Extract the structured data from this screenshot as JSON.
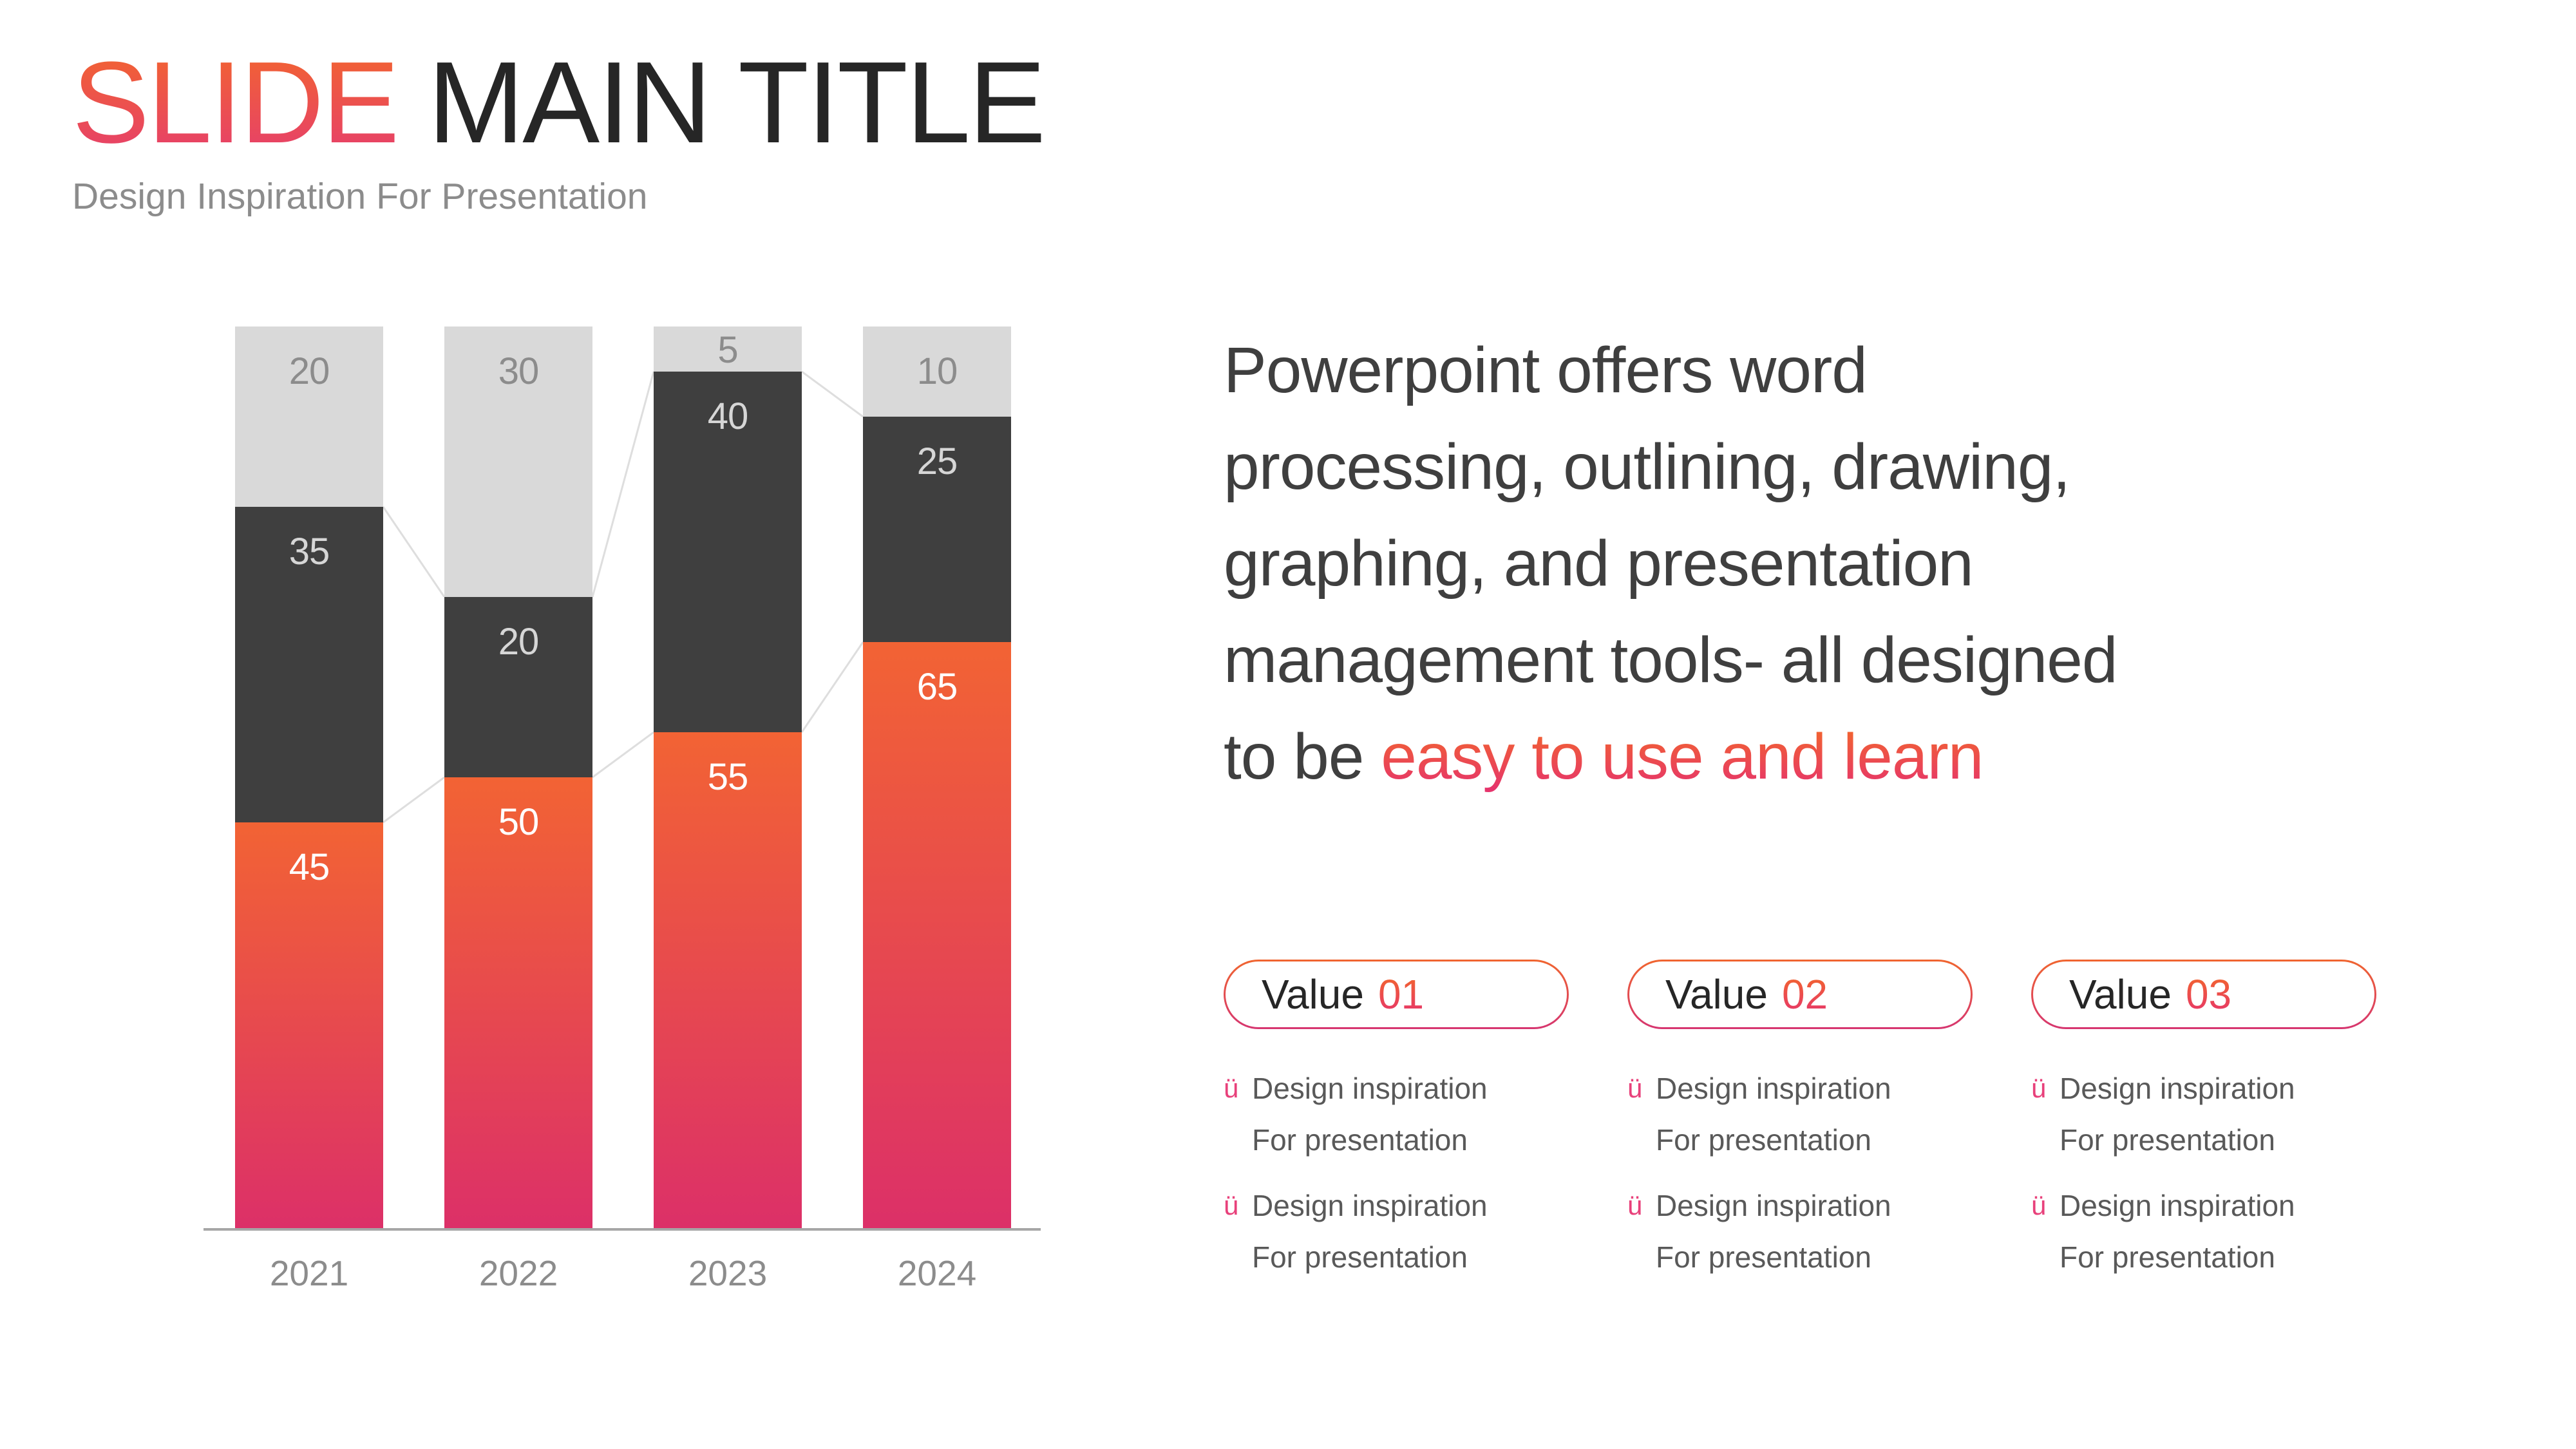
{
  "slide": {
    "title_accent": "SLIDE",
    "title_rest": " MAIN TITLE",
    "subtitle": "Design Inspiration For Presentation"
  },
  "paragraph": {
    "plain": "Powerpoint offers word\nprocessing, outlining, drawing,\ngraphing, and presentation\nmanagement tools- all designed\nto be ",
    "accent": "easy to use and learn"
  },
  "bullet_glyph": "ü",
  "value_cards": [
    {
      "badge_label": "Value",
      "badge_number": "01",
      "items": [
        {
          "line1": "Design inspiration",
          "line2": "For presentation"
        },
        {
          "line1": "Design inspiration",
          "line2": "For presentation"
        }
      ]
    },
    {
      "badge_label": "Value",
      "badge_number": "02",
      "items": [
        {
          "line1": "Design inspiration",
          "line2": "For presentation"
        },
        {
          "line1": "Design inspiration",
          "line2": "For presentation"
        }
      ]
    },
    {
      "badge_label": "Value",
      "badge_number": "03",
      "items": [
        {
          "line1": "Design inspiration",
          "line2": "For presentation"
        },
        {
          "line1": "Design inspiration",
          "line2": "For presentation"
        }
      ]
    }
  ],
  "colors": {
    "accent_gradient_top": "#F2652E",
    "accent_gradient_bottom": "#E6346C",
    "title_dark": "#262626",
    "subtitle_gray": "#8C8C8C",
    "paragraph_dark": "#3F3F3F",
    "list_text_gray": "#595959",
    "bullet_pink": "#E8417B",
    "axis_line": "#A6A6A6",
    "connector_line": "#DEDEDE"
  },
  "chart_data": {
    "type": "bar",
    "stacked": true,
    "categories": [
      "2021",
      "2022",
      "2023",
      "2024"
    ],
    "series": [
      {
        "name": "bottom",
        "values": [
          45,
          50,
          55,
          65
        ],
        "fill": {
          "type": "gradient",
          "top": "#F26334",
          "bottom": "#DC3068"
        },
        "label_color": "#FFFFFF"
      },
      {
        "name": "middle",
        "values": [
          35,
          20,
          40,
          25
        ],
        "fill": {
          "type": "solid",
          "color": "#3F3F3F"
        },
        "label_color": "#D6D6D6"
      },
      {
        "name": "top",
        "values": [
          20,
          30,
          5,
          10
        ],
        "fill": {
          "type": "solid",
          "color": "#D9D9D9"
        },
        "label_color": "#8C8C8C"
      }
    ],
    "ylim": [
      0,
      100
    ],
    "data_labels": true,
    "legend": "none",
    "gridlines": false,
    "series_connector_lines": true,
    "title": "",
    "xlabel": "",
    "ylabel": ""
  }
}
